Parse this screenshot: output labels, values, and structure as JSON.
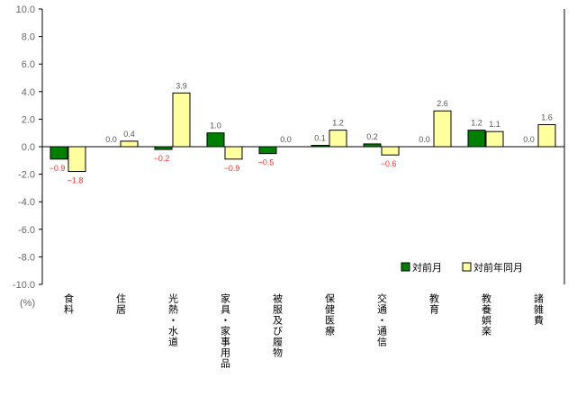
{
  "chart_data": {
    "type": "bar",
    "unit_label": "(%)",
    "ylim": [
      -10,
      10
    ],
    "yticks": [
      "10.0",
      "8.0",
      "6.0",
      "4.0",
      "2.0",
      "0.0",
      "-2.0",
      "-4.0",
      "-6.0",
      "-8.0",
      "-10.0"
    ],
    "grid": false,
    "legend_position": "bottom-right",
    "categories": [
      "食料",
      "住居",
      "光熱・水道",
      "家具・家事用品",
      "被服及び履物",
      "保健医療",
      "交通・通信",
      "教育",
      "教養娯楽",
      "諸雑費"
    ],
    "series": [
      {
        "name": "対前月",
        "color": "#008000",
        "values": [
          -0.9,
          0.0,
          -0.2,
          1.0,
          -0.5,
          0.1,
          0.2,
          0.0,
          1.2,
          0.0
        ]
      },
      {
        "name": "対前年同月",
        "color": "#FFFFA0",
        "values": [
          -1.8,
          0.4,
          3.9,
          -0.9,
          0.0,
          1.2,
          -0.6,
          2.6,
          1.1,
          1.6
        ]
      }
    ],
    "label_colors": {
      "positive": "#555555",
      "negative": "#FF3333"
    }
  }
}
